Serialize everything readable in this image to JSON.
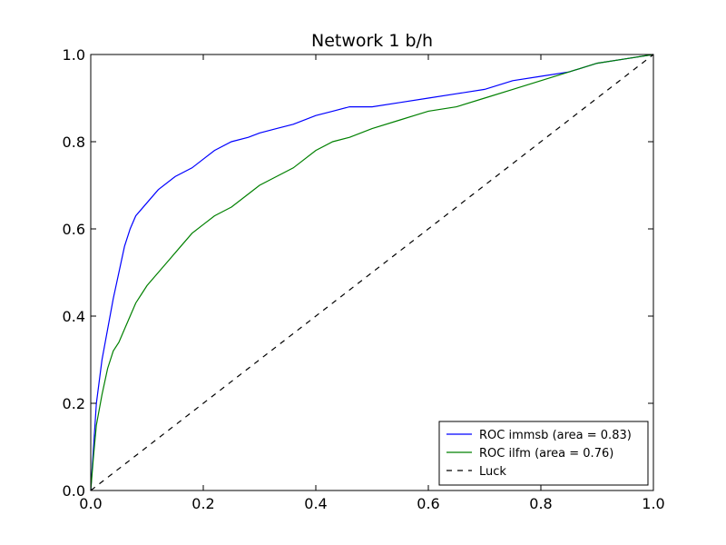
{
  "chart_data": {
    "type": "line",
    "title": "Network 1  b/h",
    "xlabel": "",
    "ylabel": "",
    "xlim": [
      0.0,
      1.0
    ],
    "ylim": [
      0.0,
      1.0
    ],
    "xticks": [
      "0.0",
      "0.2",
      "0.4",
      "0.6",
      "0.8",
      "1.0"
    ],
    "yticks": [
      "0.0",
      "0.2",
      "0.4",
      "0.6",
      "0.8",
      "1.0"
    ],
    "grid": false,
    "legend_position": "bottom-right",
    "series": [
      {
        "name": "ROC immsb (area = 0.83)",
        "color": "#0000ff",
        "style": "solid",
        "x": [
          0.0,
          0.005,
          0.01,
          0.02,
          0.03,
          0.04,
          0.05,
          0.06,
          0.07,
          0.08,
          0.1,
          0.12,
          0.15,
          0.18,
          0.2,
          0.22,
          0.25,
          0.28,
          0.3,
          0.33,
          0.36,
          0.4,
          0.43,
          0.46,
          0.5,
          0.55,
          0.6,
          0.65,
          0.7,
          0.75,
          0.8,
          0.85,
          0.9,
          0.95,
          1.0
        ],
        "y": [
          0.0,
          0.1,
          0.2,
          0.3,
          0.37,
          0.44,
          0.5,
          0.56,
          0.6,
          0.63,
          0.66,
          0.69,
          0.72,
          0.74,
          0.76,
          0.78,
          0.8,
          0.81,
          0.82,
          0.83,
          0.84,
          0.86,
          0.87,
          0.88,
          0.88,
          0.89,
          0.9,
          0.91,
          0.92,
          0.94,
          0.95,
          0.96,
          0.98,
          0.99,
          1.0
        ]
      },
      {
        "name": "ROC ilfm (area = 0.76)",
        "color": "#008000",
        "style": "solid",
        "x": [
          0.0,
          0.005,
          0.01,
          0.02,
          0.03,
          0.04,
          0.05,
          0.06,
          0.07,
          0.08,
          0.09,
          0.1,
          0.12,
          0.14,
          0.16,
          0.18,
          0.2,
          0.22,
          0.25,
          0.28,
          0.3,
          0.33,
          0.36,
          0.4,
          0.43,
          0.46,
          0.5,
          0.55,
          0.6,
          0.65,
          0.7,
          0.75,
          0.8,
          0.85,
          0.9,
          0.95,
          1.0
        ],
        "y": [
          0.0,
          0.08,
          0.15,
          0.22,
          0.28,
          0.32,
          0.34,
          0.37,
          0.4,
          0.43,
          0.45,
          0.47,
          0.5,
          0.53,
          0.56,
          0.59,
          0.61,
          0.63,
          0.65,
          0.68,
          0.7,
          0.72,
          0.74,
          0.78,
          0.8,
          0.81,
          0.83,
          0.85,
          0.87,
          0.88,
          0.9,
          0.92,
          0.94,
          0.96,
          0.98,
          0.99,
          1.0
        ]
      },
      {
        "name": "Luck",
        "color": "#000000",
        "style": "dashed",
        "x": [
          0.0,
          1.0
        ],
        "y": [
          0.0,
          1.0
        ]
      }
    ]
  }
}
